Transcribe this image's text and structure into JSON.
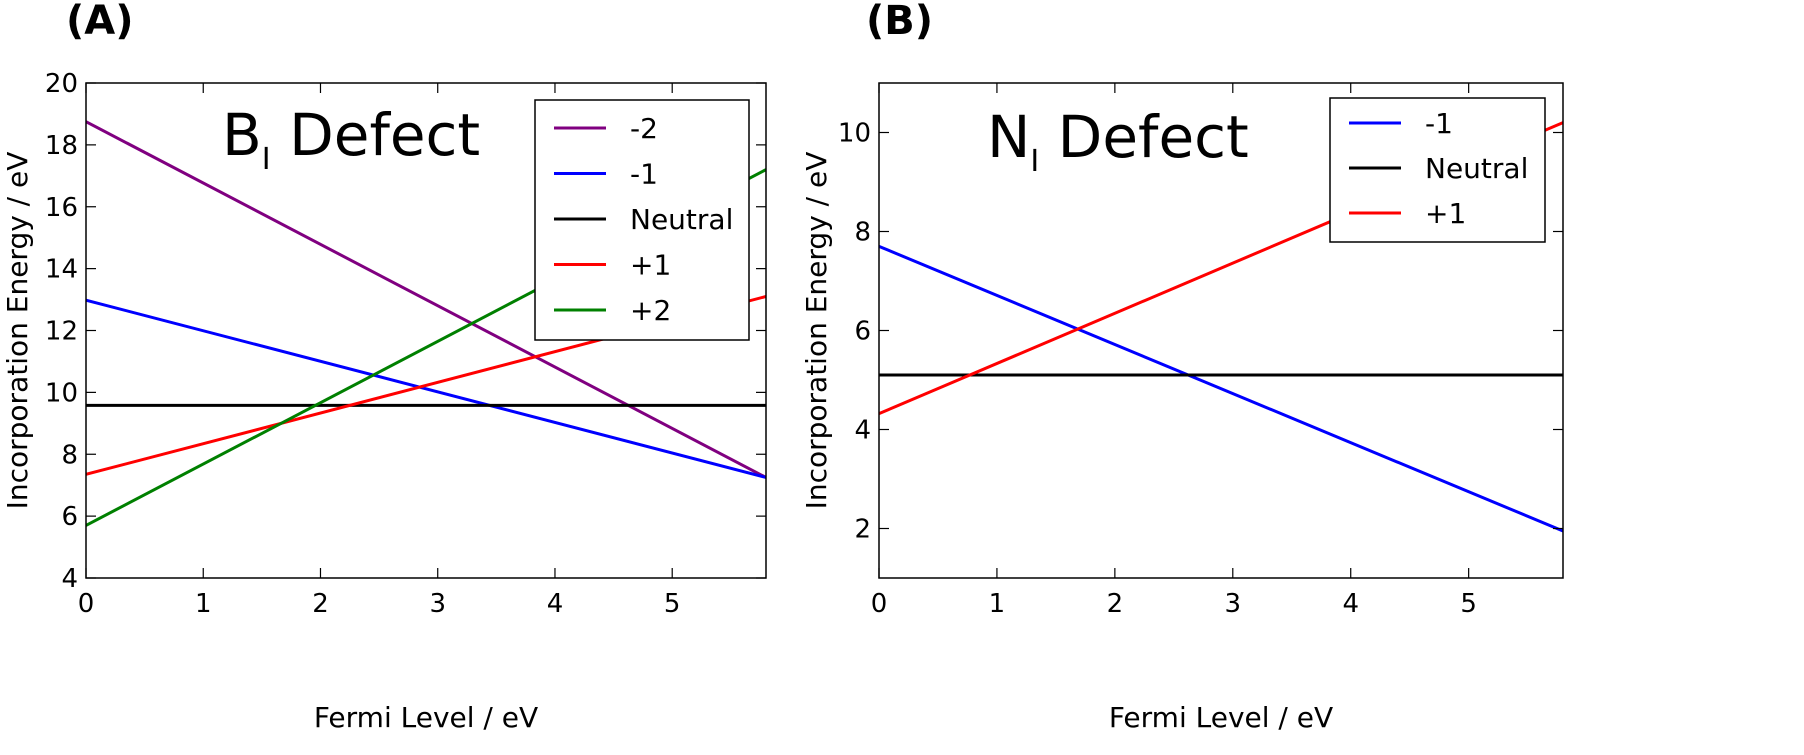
{
  "chart_data": [
    {
      "type": "line",
      "panel_label": "(A)",
      "title": "B",
      "title_subscript": "I",
      "title_suffix": " Defect",
      "xlabel": "Fermi Level / eV",
      "ylabel": "Incorporation Energy / eV",
      "xlim": [
        0,
        5.8
      ],
      "ylim": [
        4,
        20
      ],
      "xticks": [
        0,
        1,
        2,
        3,
        4,
        5
      ],
      "yticks": [
        4,
        6,
        8,
        10,
        12,
        14,
        16,
        18,
        20
      ],
      "legend_position": "top-right",
      "series": [
        {
          "name": "-2",
          "color": "#800080",
          "x": [
            0,
            5.8
          ],
          "y": [
            18.75,
            7.25
          ]
        },
        {
          "name": "-1",
          "color": "#0000ff",
          "x": [
            0,
            5.8
          ],
          "y": [
            12.98,
            7.25
          ]
        },
        {
          "name": "Neutral",
          "color": "#000000",
          "x": [
            0,
            5.8
          ],
          "y": [
            9.58,
            9.58
          ]
        },
        {
          "name": "+1",
          "color": "#ff0000",
          "x": [
            0,
            5.8
          ],
          "y": [
            7.35,
            13.1
          ]
        },
        {
          "name": "+2",
          "color": "#008000",
          "x": [
            0,
            5.8
          ],
          "y": [
            5.7,
            17.2
          ]
        }
      ]
    },
    {
      "type": "line",
      "panel_label": "(B)",
      "title": "N",
      "title_subscript": "I",
      "title_suffix": " Defect",
      "xlabel": "Fermi Level / eV",
      "ylabel": "Incorporation Energy / eV",
      "xlim": [
        0,
        5.8
      ],
      "ylim": [
        1,
        11
      ],
      "xticks": [
        0,
        1,
        2,
        3,
        4,
        5
      ],
      "yticks": [
        2,
        4,
        6,
        8,
        10
      ],
      "legend_position": "top-right",
      "series": [
        {
          "name": "-1",
          "color": "#0000ff",
          "x": [
            0,
            5.8
          ],
          "y": [
            7.7,
            1.95
          ]
        },
        {
          "name": "Neutral",
          "color": "#000000",
          "x": [
            0,
            5.8
          ],
          "y": [
            5.1,
            5.1
          ]
        },
        {
          "name": "+1",
          "color": "#ff0000",
          "x": [
            0,
            5.8
          ],
          "y": [
            4.32,
            10.2
          ]
        }
      ]
    }
  ]
}
